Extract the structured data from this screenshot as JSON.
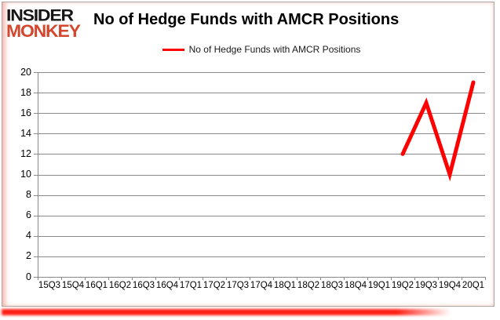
{
  "brand": {
    "line1": "INSIDER",
    "line2": "MONKEY",
    "line1_color": "#161616",
    "line2_color": "#d4472e"
  },
  "header": {
    "title": "No of Hedge Funds with AMCR Positions"
  },
  "legend": {
    "label": "No of Hedge Funds with AMCR Positions",
    "line_color": "#ff0000"
  },
  "chart_data": {
    "type": "line",
    "title": "No of Hedge Funds with AMCR Positions",
    "categories": [
      "15Q3",
      "15Q4",
      "16Q1",
      "16Q2",
      "16Q3",
      "16Q4",
      "17Q1",
      "17Q2",
      "17Q3",
      "17Q4",
      "18Q1",
      "18Q2",
      "18Q3",
      "18Q4",
      "19Q1",
      "19Q2",
      "19Q3",
      "19Q4",
      "20Q1"
    ],
    "series": [
      {
        "name": "No of Hedge Funds with AMCR Positions",
        "color": "#ff0000",
        "values": [
          null,
          null,
          null,
          null,
          null,
          null,
          null,
          null,
          null,
          null,
          null,
          null,
          null,
          null,
          null,
          12,
          17,
          10,
          19
        ]
      }
    ],
    "xlabel": "",
    "ylabel": "",
    "ylim": [
      0,
      20
    ],
    "yticks": [
      0,
      2,
      4,
      6,
      8,
      10,
      12,
      14,
      16,
      18,
      20
    ],
    "grid": true,
    "gridline_color": "#8a8a8a",
    "axis_color": "#8a8a8a",
    "legend_position": "top-center"
  }
}
